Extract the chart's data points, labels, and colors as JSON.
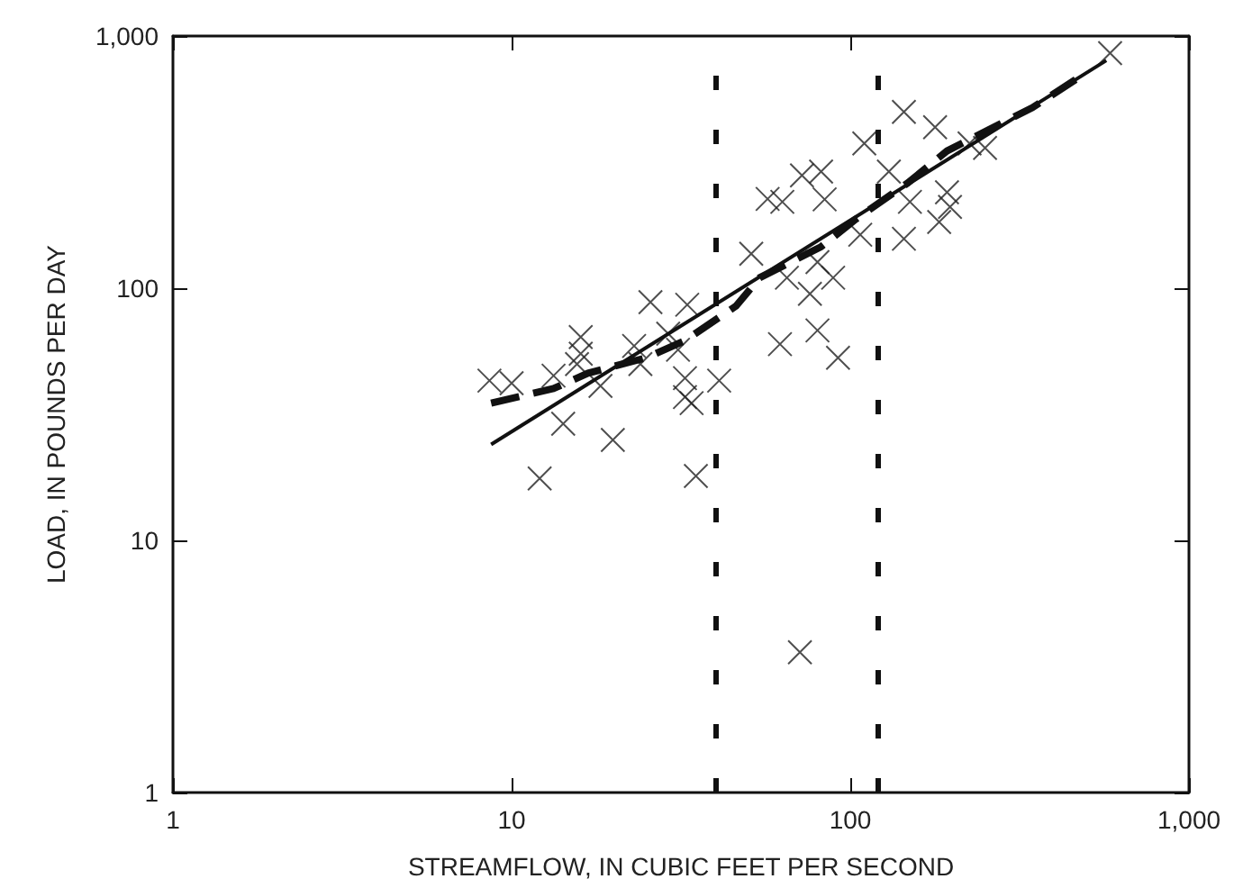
{
  "chart_data": {
    "type": "scatter",
    "xlabel": "STREAMFLOW, IN CUBIC FEET PER SECOND",
    "ylabel": "LOAD, IN POUNDS PER DAY",
    "log": "xy",
    "grid": false,
    "marker": "cross",
    "xlim": [
      1,
      1000
    ],
    "ylim": [
      1,
      1000
    ],
    "xticks": [
      1,
      10,
      100,
      {
        "value": 1000,
        "label": "1,000"
      }
    ],
    "yticks": [
      1,
      10,
      100,
      {
        "value": 1000,
        "label": "1,000"
      }
    ],
    "series": [
      {
        "color": "#222222",
        "x": [
          8.6,
          10,
          12.1,
          13.3,
          14.2,
          16,
          16,
          15.6,
          19.9,
          18.3,
          23,
          25.7,
          24,
          29,
          33,
          32.5,
          32.5,
          34,
          35,
          31,
          41,
          51,
          57,
          62,
          63,
          65,
          72,
          82,
          84,
          80,
          76,
          80,
          92,
          71,
          89,
          107,
          110,
          130,
          144,
          144,
          178,
          193,
          183,
          197,
          225,
          250,
          585,
          150
        ],
        "values": [
          43,
          42,
          17.6,
          45,
          29,
          64,
          55,
          50,
          25,
          41,
          59,
          88,
          50,
          66,
          86,
          44,
          37,
          35,
          18,
          57,
          43,
          137,
          226,
          60,
          220,
          110,
          280,
          290,
          225,
          127,
          95,
          68,
          53,
          3.6,
          110,
          163,
          375,
          290,
          500,
          157,
          435,
          240,
          183,
          210,
          375,
          360,
          855,
          220
        ]
      },
      {
        "type": "line",
        "color": "#111111",
        "line_style": "solid",
        "marker": "none",
        "x": [
          8.7,
          570
        ],
        "values": [
          24,
          800
        ]
      },
      {
        "type": "line",
        "color": "#111111",
        "line_style": "dashed",
        "marker": "none",
        "x": [
          8.7,
          13.3,
          16.8,
          25,
          32.5,
          46,
          54,
          82,
          104,
          147,
          193,
          265,
          345,
          485
        ],
        "values": [
          35,
          40,
          46,
          53,
          62,
          85,
          110,
          146,
          188,
          260,
          350,
          435,
          520,
          700
        ]
      }
    ],
    "ref_lines": [
      {
        "axis": "x",
        "value": 40,
        "line_style": "dashed",
        "color": "#111111"
      },
      {
        "axis": "x",
        "value": 120,
        "line_style": "dashed",
        "color": "#111111"
      }
    ]
  }
}
